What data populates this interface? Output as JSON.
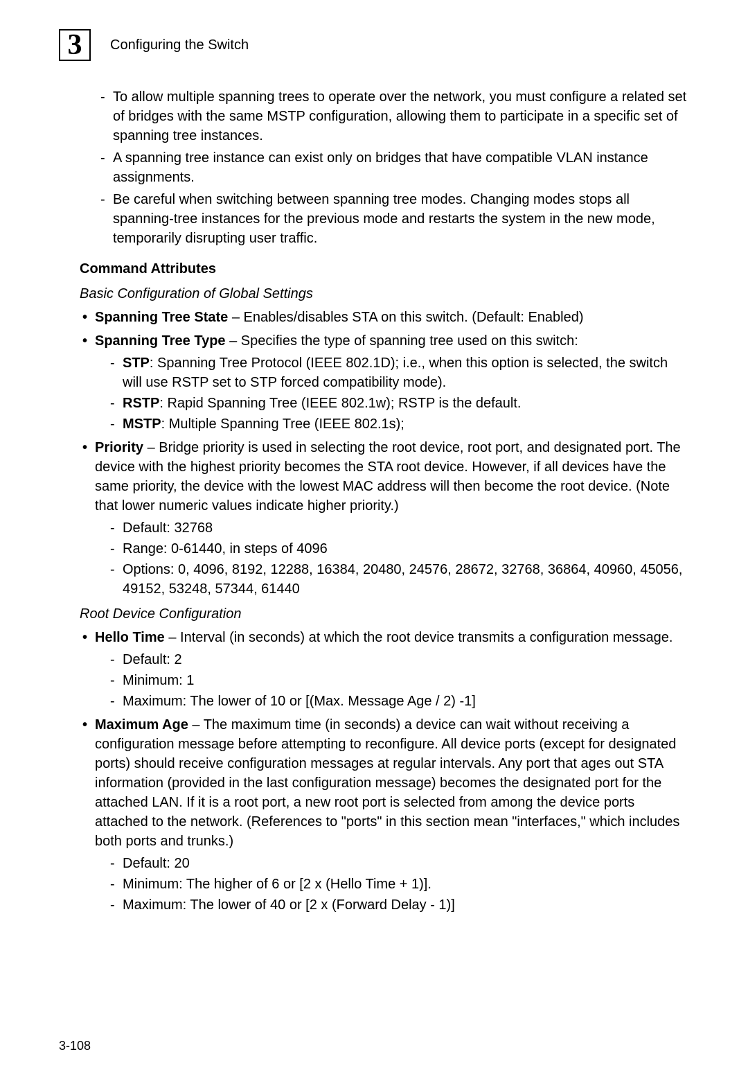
{
  "header": {
    "chapter_num": "3",
    "chapter_title": "Configuring the Switch"
  },
  "intro_notes": [
    "To allow multiple spanning trees to operate over the network, you must configure a related set of bridges with the same MSTP configuration, allowing them to participate in a specific set of spanning tree instances.",
    "A spanning tree instance can exist only on bridges that have compatible VLAN instance assignments.",
    "Be careful when switching between spanning tree modes. Changing modes stops all spanning-tree instances for the previous mode and restarts the system in the new mode, temporarily disrupting user traffic."
  ],
  "command_attrs_heading": "Command Attributes",
  "basic_config_heading": "Basic Configuration of Global Settings",
  "state_label": "Spanning Tree State",
  "state_text": " – Enables/disables STA on this switch. (Default: Enabled)",
  "type_label": "Spanning Tree Type",
  "type_text": " – Specifies the type of spanning tree used on this switch:",
  "stp_label": "STP",
  "stp_text": ": Spanning Tree Protocol (IEEE 802.1D); i.e., when this option is selected, the switch will use RSTP set to STP forced compatibility mode).",
  "rstp_label": "RSTP",
  "rstp_text": ": Rapid Spanning Tree (IEEE 802.1w); RSTP is the default.",
  "mstp_label": "MSTP",
  "mstp_text": ": Multiple Spanning Tree (IEEE 802.1s);",
  "priority_label": "Priority",
  "priority_text": " – Bridge priority is used in selecting the root device, root port, and designated port. The device with the highest priority becomes the STA root device. However, if all devices have the same priority, the device with the lowest MAC address will then become the root device. (Note that lower numeric values indicate higher priority.)",
  "priority_default": "Default: 32768",
  "priority_range": "Range: 0-61440, in steps of 4096",
  "priority_options": "Options: 0, 4096, 8192, 12288, 16384, 20480, 24576, 28672, 32768, 36864, 40960, 45056, 49152, 53248, 57344, 61440",
  "root_heading": "Root Device Configuration",
  "hello_label": "Hello Time",
  "hello_text": " – Interval (in seconds) at which the root device transmits a configuration message.",
  "hello_default": "Default: 2",
  "hello_min": "Minimum: 1",
  "hello_max": "Maximum: The lower of 10 or [(Max. Message Age / 2) -1]",
  "maxage_label": "Maximum Age",
  "maxage_text": " – The maximum time (in seconds) a device can wait without receiving a configuration message before attempting to reconfigure. All device ports (except for designated ports) should receive configuration messages at regular intervals. Any port that ages out STA information (provided in the last configuration message) becomes the designated port for the attached LAN. If it is a root port, a new root port is selected from among the device ports attached to the network. (References to \"ports\" in this section mean \"interfaces,\" which includes both ports and trunks.)",
  "maxage_default": "Default: 20",
  "maxage_min": "Minimum: The higher of 6 or [2 x (Hello Time + 1)].",
  "maxage_max": "Maximum: The lower of 40 or [2 x (Forward Delay - 1)]",
  "page_num": "3-108"
}
